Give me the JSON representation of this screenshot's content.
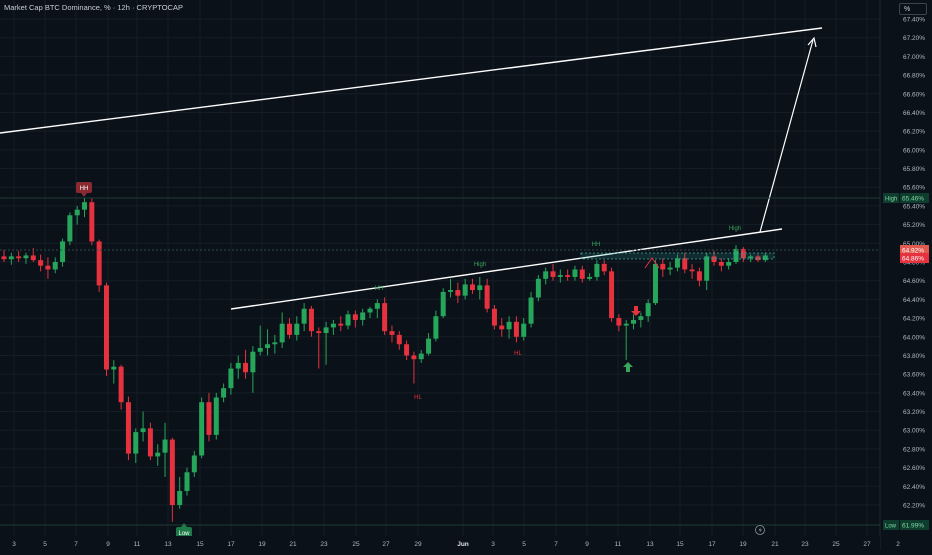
{
  "header": {
    "title": "Market Cap BTC Dominance, % · 12h · CRYPTOCAP",
    "unit_label": "%"
  },
  "colors": {
    "background": "#0b1118",
    "up": "#26a65b",
    "down": "#e5323e",
    "grid": "#151d26",
    "text": "#b2b8c2",
    "annotation_green": "#3aa55d",
    "annotation_red": "#e5323e",
    "line": "#ffffff"
  },
  "chart_data": {
    "type": "candlestick",
    "title": "Market Cap BTC Dominance, % · 12h · CRYPTOCAP",
    "ylabel": "%",
    "ylim": [
      61.9,
      67.62
    ],
    "y_ticks": [
      "67.40%",
      "67.20%",
      "67.00%",
      "66.80%",
      "66.60%",
      "66.40%",
      "66.20%",
      "66.00%",
      "65.80%",
      "65.60%",
      "65.40%",
      "65.20%",
      "65.00%",
      "64.80%",
      "64.60%",
      "64.40%",
      "64.20%",
      "64.00%",
      "63.80%",
      "63.60%",
      "63.40%",
      "63.20%",
      "63.00%",
      "62.80%",
      "62.60%",
      "62.40%",
      "62.20%"
    ],
    "y_tick_values": [
      67.4,
      67.2,
      67.0,
      66.8,
      66.6,
      66.4,
      66.2,
      66.0,
      65.8,
      65.6,
      65.4,
      65.2,
      65.0,
      64.8,
      64.6,
      64.4,
      64.2,
      64.0,
      63.8,
      63.6,
      63.4,
      63.2,
      63.0,
      62.8,
      62.6,
      62.4,
      62.2
    ],
    "x_ticks": [
      "3",
      "5",
      "7",
      "9",
      "11",
      "13",
      "15",
      "17",
      "19",
      "21",
      "23",
      "25",
      "27",
      "29",
      "Jun",
      "3",
      "5",
      "7",
      "9",
      "11",
      "13",
      "15",
      "17",
      "19",
      "21",
      "23",
      "25",
      "27",
      "2"
    ],
    "grid": true,
    "candles": [
      {
        "o": 64.86,
        "h": 64.93,
        "l": 64.8,
        "c": 64.83
      },
      {
        "o": 64.83,
        "h": 64.9,
        "l": 64.77,
        "c": 64.86
      },
      {
        "o": 64.86,
        "h": 64.92,
        "l": 64.8,
        "c": 64.84
      },
      {
        "o": 64.84,
        "h": 64.9,
        "l": 64.78,
        "c": 64.87
      },
      {
        "o": 64.87,
        "h": 64.95,
        "l": 64.8,
        "c": 64.82
      },
      {
        "o": 64.82,
        "h": 64.88,
        "l": 64.7,
        "c": 64.76
      },
      {
        "o": 64.76,
        "h": 64.85,
        "l": 64.62,
        "c": 64.72
      },
      {
        "o": 64.72,
        "h": 64.85,
        "l": 64.68,
        "c": 64.8
      },
      {
        "o": 64.8,
        "h": 65.05,
        "l": 64.75,
        "c": 65.02
      },
      {
        "o": 65.02,
        "h": 65.33,
        "l": 64.98,
        "c": 65.3
      },
      {
        "o": 65.3,
        "h": 65.4,
        "l": 65.2,
        "c": 65.36
      },
      {
        "o": 65.36,
        "h": 65.48,
        "l": 65.28,
        "c": 65.44
      },
      {
        "o": 65.44,
        "h": 65.48,
        "l": 64.98,
        "c": 65.02
      },
      {
        "o": 65.02,
        "h": 65.04,
        "l": 64.48,
        "c": 64.55
      },
      {
        "o": 64.55,
        "h": 64.58,
        "l": 63.58,
        "c": 63.65
      },
      {
        "o": 63.65,
        "h": 63.75,
        "l": 63.5,
        "c": 63.68
      },
      {
        "o": 63.68,
        "h": 63.7,
        "l": 63.22,
        "c": 63.3
      },
      {
        "o": 63.3,
        "h": 63.36,
        "l": 62.68,
        "c": 62.75
      },
      {
        "o": 62.75,
        "h": 63.02,
        "l": 62.65,
        "c": 62.98
      },
      {
        "o": 62.98,
        "h": 63.2,
        "l": 62.88,
        "c": 63.02
      },
      {
        "o": 63.02,
        "h": 63.08,
        "l": 62.68,
        "c": 62.72
      },
      {
        "o": 62.72,
        "h": 62.85,
        "l": 62.62,
        "c": 62.76
      },
      {
        "o": 62.76,
        "h": 63.08,
        "l": 62.5,
        "c": 62.9
      },
      {
        "o": 62.9,
        "h": 62.92,
        "l": 62.02,
        "c": 62.2
      },
      {
        "o": 62.2,
        "h": 62.5,
        "l": 62.16,
        "c": 62.35
      },
      {
        "o": 62.35,
        "h": 62.6,
        "l": 62.3,
        "c": 62.55
      },
      {
        "o": 62.55,
        "h": 62.78,
        "l": 62.5,
        "c": 62.73
      },
      {
        "o": 62.73,
        "h": 63.35,
        "l": 62.7,
        "c": 63.3
      },
      {
        "o": 63.3,
        "h": 63.4,
        "l": 62.88,
        "c": 62.95
      },
      {
        "o": 62.95,
        "h": 63.4,
        "l": 62.9,
        "c": 63.35
      },
      {
        "o": 63.35,
        "h": 63.5,
        "l": 63.3,
        "c": 63.45
      },
      {
        "o": 63.45,
        "h": 63.72,
        "l": 63.38,
        "c": 63.66
      },
      {
        "o": 63.66,
        "h": 63.8,
        "l": 63.55,
        "c": 63.72
      },
      {
        "o": 63.72,
        "h": 63.86,
        "l": 63.55,
        "c": 63.62
      },
      {
        "o": 63.62,
        "h": 63.9,
        "l": 63.4,
        "c": 63.84
      },
      {
        "o": 63.84,
        "h": 64.12,
        "l": 63.8,
        "c": 63.88
      },
      {
        "o": 63.88,
        "h": 64.08,
        "l": 63.8,
        "c": 63.92
      },
      {
        "o": 63.92,
        "h": 64.02,
        "l": 63.82,
        "c": 63.94
      },
      {
        "o": 63.94,
        "h": 64.26,
        "l": 63.88,
        "c": 64.14
      },
      {
        "o": 64.14,
        "h": 64.2,
        "l": 63.98,
        "c": 64.02
      },
      {
        "o": 64.02,
        "h": 64.22,
        "l": 63.96,
        "c": 64.14
      },
      {
        "o": 64.14,
        "h": 64.36,
        "l": 64.06,
        "c": 64.3
      },
      {
        "o": 64.3,
        "h": 64.33,
        "l": 64.0,
        "c": 64.06
      },
      {
        "o": 64.06,
        "h": 64.1,
        "l": 63.66,
        "c": 64.04
      },
      {
        "o": 64.04,
        "h": 64.16,
        "l": 63.7,
        "c": 64.1
      },
      {
        "o": 64.1,
        "h": 64.18,
        "l": 64.02,
        "c": 64.14
      },
      {
        "o": 64.14,
        "h": 64.22,
        "l": 64.06,
        "c": 64.12
      },
      {
        "o": 64.12,
        "h": 64.28,
        "l": 64.08,
        "c": 64.24
      },
      {
        "o": 64.24,
        "h": 64.28,
        "l": 64.1,
        "c": 64.18
      },
      {
        "o": 64.18,
        "h": 64.3,
        "l": 64.12,
        "c": 64.26
      },
      {
        "o": 64.26,
        "h": 64.32,
        "l": 64.2,
        "c": 64.3
      },
      {
        "o": 64.3,
        "h": 64.4,
        "l": 64.2,
        "c": 64.36
      },
      {
        "o": 64.36,
        "h": 64.42,
        "l": 64.02,
        "c": 64.06
      },
      {
        "o": 64.06,
        "h": 64.12,
        "l": 63.94,
        "c": 64.02
      },
      {
        "o": 64.02,
        "h": 64.06,
        "l": 63.86,
        "c": 63.92
      },
      {
        "o": 63.92,
        "h": 63.96,
        "l": 63.75,
        "c": 63.8
      },
      {
        "o": 63.8,
        "h": 63.84,
        "l": 63.5,
        "c": 63.76
      },
      {
        "o": 63.76,
        "h": 63.86,
        "l": 63.72,
        "c": 63.82
      },
      {
        "o": 63.82,
        "h": 64.04,
        "l": 63.8,
        "c": 63.98
      },
      {
        "o": 63.98,
        "h": 64.28,
        "l": 63.95,
        "c": 64.22
      },
      {
        "o": 64.22,
        "h": 64.52,
        "l": 64.2,
        "c": 64.48
      },
      {
        "o": 64.48,
        "h": 64.62,
        "l": 64.42,
        "c": 64.5
      },
      {
        "o": 64.5,
        "h": 64.58,
        "l": 64.36,
        "c": 64.44
      },
      {
        "o": 64.44,
        "h": 64.62,
        "l": 64.4,
        "c": 64.56
      },
      {
        "o": 64.56,
        "h": 64.62,
        "l": 64.46,
        "c": 64.5
      },
      {
        "o": 64.5,
        "h": 64.64,
        "l": 64.4,
        "c": 64.55
      },
      {
        "o": 64.55,
        "h": 64.62,
        "l": 64.26,
        "c": 64.3
      },
      {
        "o": 64.3,
        "h": 64.34,
        "l": 64.08,
        "c": 64.12
      },
      {
        "o": 64.12,
        "h": 64.2,
        "l": 64.0,
        "c": 64.08
      },
      {
        "o": 64.08,
        "h": 64.22,
        "l": 63.98,
        "c": 64.16
      },
      {
        "o": 64.16,
        "h": 64.22,
        "l": 63.94,
        "c": 64.0
      },
      {
        "o": 64.0,
        "h": 64.2,
        "l": 63.96,
        "c": 64.14
      },
      {
        "o": 64.14,
        "h": 64.48,
        "l": 64.1,
        "c": 64.42
      },
      {
        "o": 64.42,
        "h": 64.66,
        "l": 64.38,
        "c": 64.62
      },
      {
        "o": 64.62,
        "h": 64.74,
        "l": 64.56,
        "c": 64.7
      },
      {
        "o": 64.7,
        "h": 64.78,
        "l": 64.6,
        "c": 64.64
      },
      {
        "o": 64.64,
        "h": 64.72,
        "l": 64.58,
        "c": 64.66
      },
      {
        "o": 64.66,
        "h": 64.72,
        "l": 64.6,
        "c": 64.64
      },
      {
        "o": 64.64,
        "h": 64.76,
        "l": 64.6,
        "c": 64.72
      },
      {
        "o": 64.72,
        "h": 64.76,
        "l": 64.58,
        "c": 64.62
      },
      {
        "o": 64.62,
        "h": 64.68,
        "l": 64.6,
        "c": 64.64
      },
      {
        "o": 64.64,
        "h": 64.82,
        "l": 64.6,
        "c": 64.78
      },
      {
        "o": 64.78,
        "h": 64.82,
        "l": 64.66,
        "c": 64.7
      },
      {
        "o": 64.7,
        "h": 64.74,
        "l": 64.16,
        "c": 64.2
      },
      {
        "o": 64.2,
        "h": 64.24,
        "l": 64.06,
        "c": 64.12
      },
      {
        "o": 64.12,
        "h": 64.18,
        "l": 63.75,
        "c": 64.14
      },
      {
        "o": 64.14,
        "h": 64.24,
        "l": 64.08,
        "c": 64.18
      },
      {
        "o": 64.18,
        "h": 64.26,
        "l": 64.1,
        "c": 64.22
      },
      {
        "o": 64.22,
        "h": 64.4,
        "l": 64.16,
        "c": 64.36
      },
      {
        "o": 64.36,
        "h": 64.82,
        "l": 64.34,
        "c": 64.78
      },
      {
        "o": 64.78,
        "h": 64.84,
        "l": 64.64,
        "c": 64.72
      },
      {
        "o": 64.72,
        "h": 64.8,
        "l": 64.66,
        "c": 64.74
      },
      {
        "o": 64.74,
        "h": 64.88,
        "l": 64.7,
        "c": 64.84
      },
      {
        "o": 64.84,
        "h": 64.9,
        "l": 64.68,
        "c": 64.72
      },
      {
        "o": 64.72,
        "h": 64.78,
        "l": 64.62,
        "c": 64.7
      },
      {
        "o": 64.7,
        "h": 64.74,
        "l": 64.54,
        "c": 64.6
      },
      {
        "o": 64.6,
        "h": 64.9,
        "l": 64.5,
        "c": 64.86
      },
      {
        "o": 64.86,
        "h": 64.92,
        "l": 64.76,
        "c": 64.8
      },
      {
        "o": 64.8,
        "h": 64.84,
        "l": 64.7,
        "c": 64.76
      },
      {
        "o": 64.76,
        "h": 64.84,
        "l": 64.72,
        "c": 64.8
      },
      {
        "o": 64.8,
        "h": 64.98,
        "l": 64.78,
        "c": 64.94
      },
      {
        "o": 64.94,
        "h": 64.96,
        "l": 64.8,
        "c": 64.84
      },
      {
        "o": 64.84,
        "h": 64.88,
        "l": 64.8,
        "c": 64.86
      },
      {
        "o": 64.86,
        "h": 64.88,
        "l": 64.8,
        "c": 64.82
      },
      {
        "o": 64.82,
        "h": 64.9,
        "l": 64.8,
        "c": 64.87
      }
    ],
    "trendlines": [
      {
        "from": {
          "x": "9",
          "y": 64.43
        },
        "to": {
          "x": "20",
          "y": 65.14
        }
      },
      {
        "from": {
          "x": "30",
          "y": 66.17
        },
        "to": {
          "x": "23",
          "y": 67.3
        }
      }
    ],
    "projection_arrow": {
      "from": {
        "x": "20",
        "y": 65.16
      },
      "to": {
        "x": "23",
        "y": 67.18
      }
    },
    "annotations": [
      {
        "text": "HH",
        "kind": "badge-red"
      },
      {
        "text": "Low",
        "kind": "badge-green"
      },
      {
        "text": "High",
        "kind": "label-green"
      },
      {
        "text": "HH",
        "kind": "label-green"
      },
      {
        "text": "High",
        "kind": "label-green"
      },
      {
        "text": "HL",
        "kind": "label-red"
      },
      {
        "text": "HL",
        "kind": "label-red"
      },
      {
        "text": "HH",
        "kind": "label-green"
      }
    ],
    "price_labels": [
      {
        "name": "High",
        "value": "65.46%"
      },
      {
        "name": "",
        "value": "64.92%"
      },
      {
        "name": "",
        "value": "64.86%"
      },
      {
        "name": "Low",
        "value": "61.99%"
      }
    ]
  }
}
